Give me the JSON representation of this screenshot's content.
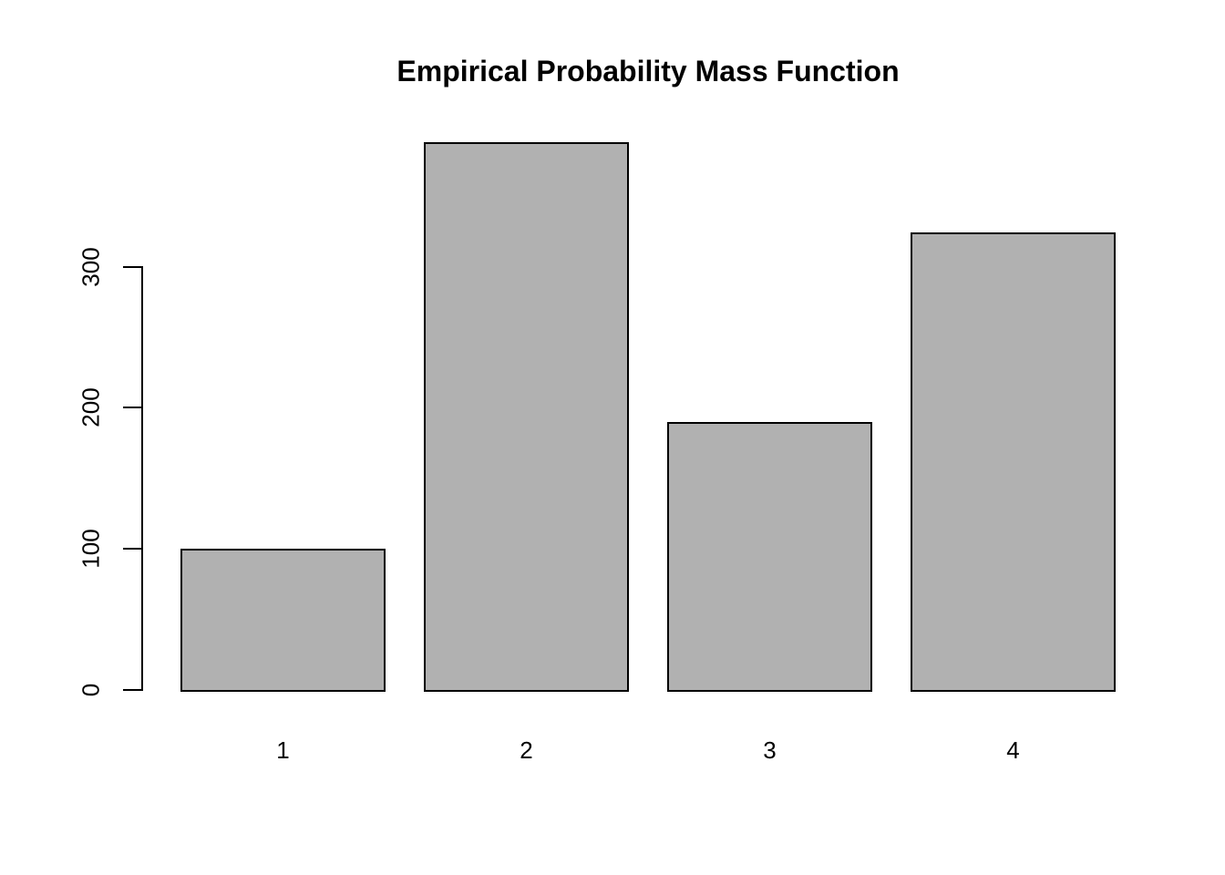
{
  "chart_data": {
    "type": "bar",
    "title": "Empirical Probability Mass Function",
    "categories": [
      "1",
      "2",
      "3",
      "4"
    ],
    "values": [
      100,
      388,
      190,
      324
    ],
    "xlabel": "",
    "ylabel": "",
    "yticks": [
      0,
      100,
      200,
      300
    ],
    "ylim": [
      0,
      395
    ],
    "grid": false,
    "legend_position": "none",
    "colors": {
      "bar_fill": "#b1b1b1",
      "bar_border": "#000000",
      "axis": "#000000",
      "text": "#000000",
      "background": "#ffffff"
    }
  }
}
